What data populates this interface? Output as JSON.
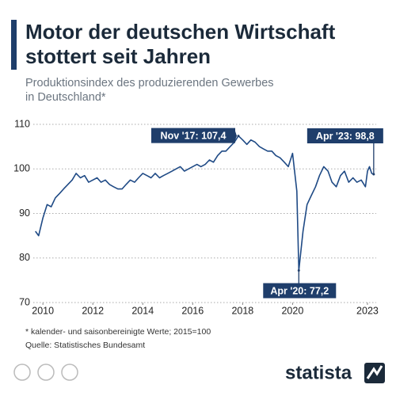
{
  "chart_data": {
    "type": "line",
    "title": [
      "Motor der deutschen Wirtschaft",
      "stottert seit Jahren"
    ],
    "subtitle": [
      "Produktionsindex des produzierenden Gewerbes",
      "in Deutschland*"
    ],
    "notes": [
      "* kalender- und saisonbereinigte Werte; 2015=100",
      "Quelle: Statistisches Bundesamt"
    ],
    "brand": "statista",
    "x": [
      2009.7,
      2009.83,
      2010.0,
      2010.17,
      2010.33,
      2010.5,
      2010.67,
      2010.83,
      2011.0,
      2011.17,
      2011.33,
      2011.5,
      2011.67,
      2011.83,
      2012.0,
      2012.17,
      2012.33,
      2012.5,
      2012.67,
      2012.83,
      2013.0,
      2013.17,
      2013.33,
      2013.5,
      2013.67,
      2013.83,
      2014.0,
      2014.17,
      2014.33,
      2014.5,
      2014.67,
      2014.83,
      2015.0,
      2015.17,
      2015.33,
      2015.5,
      2015.67,
      2015.83,
      2016.0,
      2016.17,
      2016.33,
      2016.5,
      2016.67,
      2016.83,
      2017.0,
      2017.17,
      2017.33,
      2017.5,
      2017.67,
      2017.83,
      2018.0,
      2018.17,
      2018.33,
      2018.5,
      2018.67,
      2018.83,
      2019.0,
      2019.17,
      2019.33,
      2019.5,
      2019.67,
      2019.83,
      2020.0,
      2020.17,
      2020.25,
      2020.42,
      2020.58,
      2020.75,
      2020.92,
      2021.08,
      2021.25,
      2021.42,
      2021.58,
      2021.75,
      2021.92,
      2022.08,
      2022.25,
      2022.42,
      2022.58,
      2022.75,
      2022.92,
      2023.0,
      2023.08,
      2023.17,
      2023.25
    ],
    "series": [
      {
        "color": "#1f4a85",
        "values": [
          86,
          85,
          89,
          92,
          91.5,
          93.5,
          94.5,
          95.5,
          96.5,
          97.5,
          99,
          98,
          98.5,
          97,
          97.5,
          98,
          97,
          97.5,
          96.5,
          96,
          95.5,
          95.5,
          96.5,
          97.5,
          97,
          98,
          99,
          98.5,
          98,
          99,
          98,
          98.5,
          99,
          99.5,
          100,
          100.5,
          99.5,
          100,
          100.5,
          101,
          100.5,
          101,
          102,
          101.5,
          103,
          104,
          104,
          105,
          106,
          107.4,
          106.5,
          105.5,
          106.5,
          106,
          105,
          104.5,
          104,
          104,
          103,
          102.5,
          101.5,
          100.5,
          103.5,
          95,
          77.2,
          86,
          92,
          94,
          96,
          98.5,
          100.5,
          99.5,
          97,
          96,
          98.5,
          99.5,
          97,
          98,
          97,
          97.5,
          96,
          99.5,
          100.5,
          99,
          98.8
        ]
      }
    ],
    "annotations": [
      {
        "label": "Nov '17: 107,4",
        "x": 2017.83,
        "y": 107.4
      },
      {
        "label": "Apr '20: 77,2",
        "x": 2020.25,
        "y": 77.2
      },
      {
        "label": "Apr '23: 98,8",
        "x": 2023.25,
        "y": 98.8
      }
    ],
    "xlim": [
      2009.55,
      2023.35
    ],
    "xticks": [
      2010,
      2012,
      2014,
      2016,
      2018,
      2020,
      2023
    ],
    "ylim": [
      70,
      110
    ],
    "yticks": [
      70,
      80,
      90,
      100,
      110
    ],
    "grid": true
  }
}
